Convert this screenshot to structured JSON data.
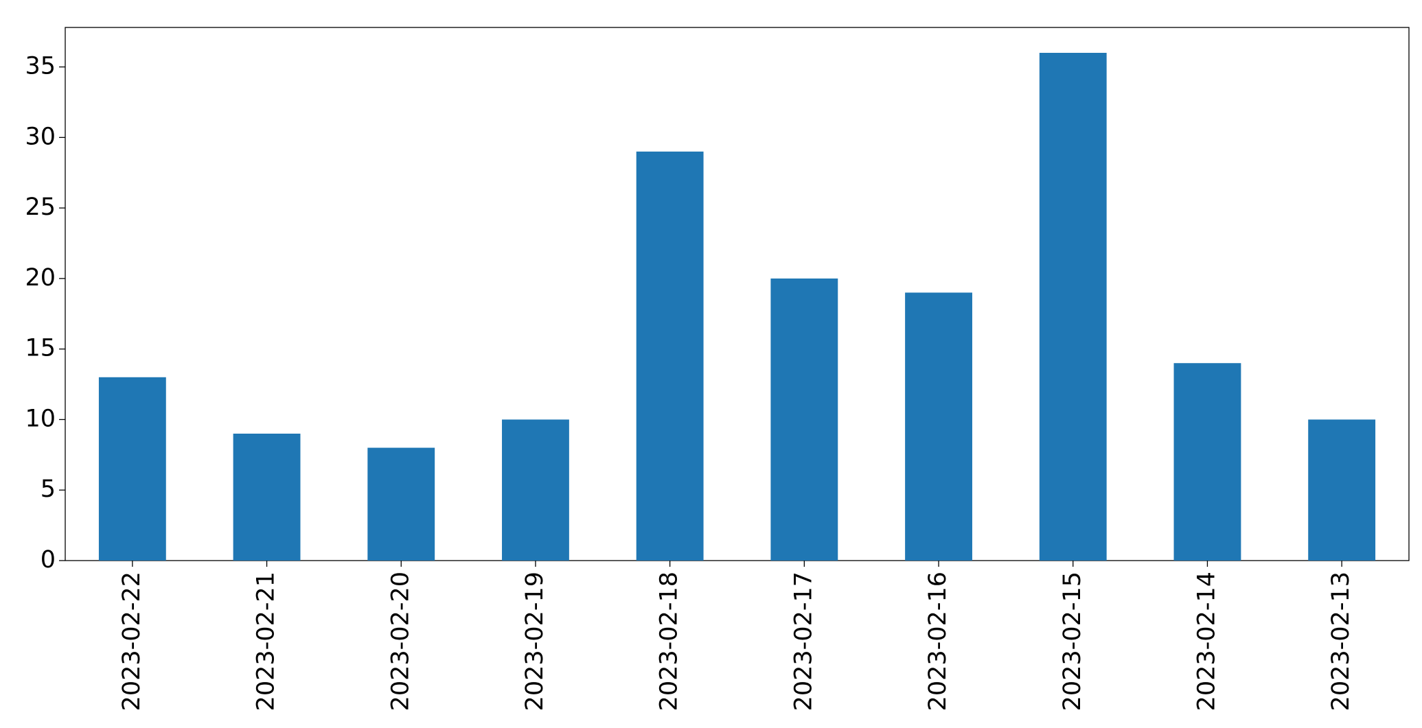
{
  "chart_data": {
    "type": "bar",
    "categories": [
      "2023-02-22",
      "2023-02-21",
      "2023-02-20",
      "2023-02-19",
      "2023-02-18",
      "2023-02-17",
      "2023-02-16",
      "2023-02-15",
      "2023-02-14",
      "2023-02-13"
    ],
    "values": [
      13,
      9,
      8,
      10,
      29,
      20,
      19,
      36,
      14,
      10
    ],
    "color": "#1f77b4",
    "ylim": [
      0,
      37.8
    ],
    "yticks": [
      0,
      5,
      10,
      15,
      20,
      25,
      30,
      35
    ],
    "grid": false
  }
}
